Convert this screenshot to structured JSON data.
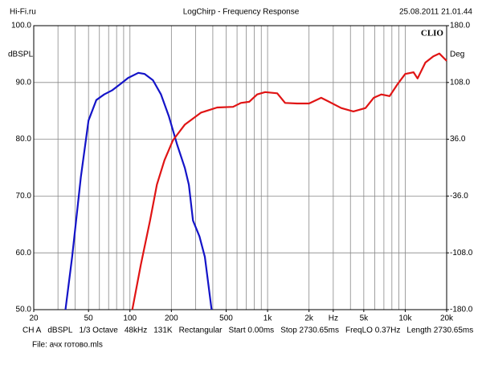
{
  "chart_data": {
    "type": "line",
    "header": {
      "left": "Hi-Fi.ru",
      "title": "LogChirp - Frequency Response",
      "right": "25.08.2011 21.01.44"
    },
    "brand": "CLIO",
    "ylabel": "dBSPL",
    "y2label": "Deg",
    "log_x": true,
    "xlim": [
      20,
      20000
    ],
    "xticks": [
      20,
      50,
      100,
      200,
      500,
      {
        "value": 1000,
        "label": "1k"
      },
      {
        "value": 2000,
        "label": "2k"
      },
      {
        "value": 3000,
        "label": "Hz"
      },
      {
        "value": 5000,
        "label": "5k"
      },
      {
        "value": 10000,
        "label": "10k"
      },
      {
        "value": 20000,
        "label": "20k"
      }
    ],
    "xgrid": [
      20,
      30,
      40,
      50,
      60,
      70,
      80,
      90,
      100,
      200,
      300,
      400,
      500,
      600,
      700,
      800,
      900,
      1000,
      2000,
      3000,
      4000,
      5000,
      6000,
      7000,
      8000,
      9000,
      10000,
      20000
    ],
    "ylim": [
      50,
      100
    ],
    "yticks": [
      {
        "value": 50,
        "label": "50.0"
      },
      {
        "value": 60,
        "label": "60.0"
      },
      {
        "value": 70,
        "label": "70.0"
      },
      {
        "value": 80,
        "label": "80.0"
      },
      {
        "value": 90,
        "label": "90.0"
      },
      {
        "value": 100,
        "label": "100.0"
      }
    ],
    "y2lim": [
      -180,
      180
    ],
    "y2ticks": [
      {
        "value": -180,
        "label": "-180.0"
      },
      {
        "value": -108,
        "label": "-108.0"
      },
      {
        "value": -36,
        "label": "-36.0"
      },
      {
        "value": 36,
        "label": "36.0"
      },
      {
        "value": 108,
        "label": "108.0"
      },
      {
        "value": 180,
        "label": "180.0"
      }
    ],
    "grid": true,
    "series": [
      {
        "color": "#1414c8",
        "x": [
          34,
          38,
          44,
          50,
          57,
          65,
          74,
          85,
          97,
          115,
          128,
          147,
          168,
          192,
          220,
          251,
          268,
          287,
          320,
          350,
          392
        ],
        "values": [
          50,
          59.3,
          73.4,
          83.3,
          86.9,
          87.9,
          88.6,
          89.7,
          90.8,
          91.7,
          91.5,
          90.4,
          87.9,
          84.0,
          79.1,
          74.9,
          72.0,
          65.7,
          62.9,
          59.3,
          50
        ]
      },
      {
        "color": "#e01414",
        "x": [
          104,
          120,
          140,
          157,
          178,
          205,
          251,
          329,
          430,
          561,
          640,
          735,
          840,
          960,
          1175,
          1340,
          1640,
          2000,
          2450,
          2800,
          3430,
          4200,
          5150,
          5900,
          6700,
          7700,
          8800,
          10000,
          11500,
          12300,
          14000,
          16000,
          17700,
          20000
        ],
        "values": [
          50,
          57.9,
          65.7,
          72.0,
          76.3,
          79.8,
          82.6,
          84.7,
          85.6,
          85.7,
          86.4,
          86.6,
          87.9,
          88.3,
          88.1,
          86.4,
          86.3,
          86.3,
          87.3,
          86.6,
          85.5,
          84.9,
          85.5,
          87.3,
          87.9,
          87.6,
          89.7,
          91.5,
          91.8,
          90.7,
          93.5,
          94.6,
          95.1,
          93.8
        ]
      }
    ],
    "footer": {
      "settings": [
        "CH A",
        "dBSPL",
        "1/3 Octave",
        "48kHz",
        "131K",
        "Rectangular",
        "Start 0.00ms",
        "Stop 2730.65ms",
        "FreqLO 0.37Hz",
        "Length 2730.65ms"
      ],
      "file": "File: ачх готово.mls"
    }
  }
}
